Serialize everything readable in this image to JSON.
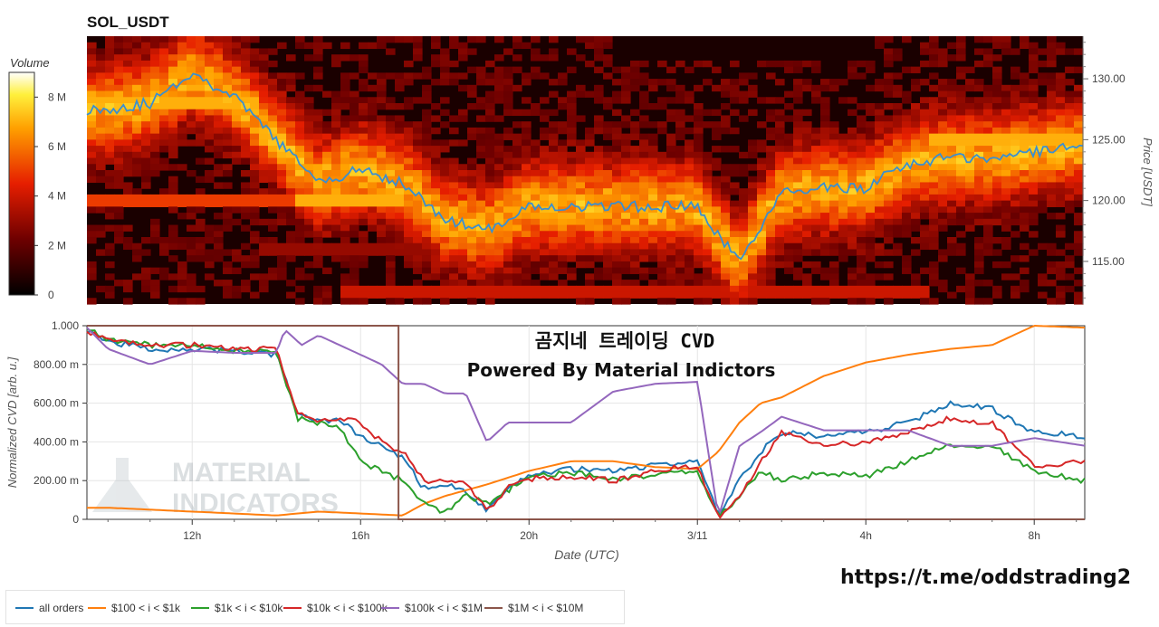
{
  "title": "SOL_USDT",
  "overlay": {
    "line1": "곰지네 트레이딩 CVD",
    "line2": "Powered By Material Indictors"
  },
  "watermark": {
    "line1": "MATERIAL",
    "line2": "INDICATORS"
  },
  "link_text": "https://t.me/oddstrading2",
  "colorbar": {
    "title": "Volume",
    "ticks": [
      "0",
      "2 M",
      "4 M",
      "6 M",
      "8 M"
    ],
    "max": 9
  },
  "heatmap_axis": {
    "label": "Price [USDT]",
    "ticks": [
      "115.00",
      "120.00",
      "125.00",
      "130.00"
    ],
    "ylim": [
      111.5,
      133.5
    ]
  },
  "cvd_axis": {
    "label": "Normalized CVD [arb. u.]",
    "ticks": [
      "0",
      "200.00 m",
      "400.00 m",
      "600.00 m",
      "800.00 m",
      "1.000"
    ],
    "ylim": [
      0,
      1
    ]
  },
  "x_axis": {
    "label": "Date (UTC)",
    "ticks": [
      "12h",
      "16h",
      "20h",
      "3/11",
      "4h",
      "8h"
    ],
    "tick_hours": [
      12,
      16,
      20,
      24,
      28,
      32
    ],
    "xlim": [
      9.5,
      33.2
    ]
  },
  "legend": [
    {
      "name": "all orders",
      "color": "#1f77b4"
    },
    {
      "name": "$100 < i < $1k",
      "color": "#ff7f0e"
    },
    {
      "name": "$1k < i < $10k",
      "color": "#2ca02c"
    },
    {
      "name": "$10k < i < $100k",
      "color": "#d62728"
    },
    {
      "name": "$100k < i < $1M",
      "color": "#9467bd"
    },
    {
      "name": "$1M < i < $10M",
      "color": "#8c564b"
    }
  ],
  "chart_data": [
    {
      "type": "heatmap",
      "title": "SOL_USDT",
      "ylabel": "Price [USDT]",
      "colorbar_label": "Volume",
      "x_hours": [
        9.5,
        10,
        11,
        12,
        13,
        14,
        15,
        16,
        17,
        18,
        19,
        20,
        21,
        22,
        23,
        24,
        25,
        26,
        27,
        28,
        29,
        30,
        31,
        32,
        33.2
      ],
      "price": [
        127.5,
        127.5,
        128.0,
        130.5,
        128.5,
        125.0,
        121.5,
        122.5,
        121.5,
        118.5,
        117.5,
        119.5,
        119.5,
        119.5,
        119.5,
        119.5,
        115.0,
        120.5,
        121.0,
        121.0,
        123.0,
        123.5,
        123.5,
        124.0,
        124.5
      ],
      "liquidity_bands": [
        {
          "price": 128.0,
          "from_hour": 9.5,
          "to_hour": 13.5,
          "volume_m": 7
        },
        {
          "price": 120.0,
          "from_hour": 9.5,
          "to_hour": 14.5,
          "volume_m": 5
        },
        {
          "price": 120.0,
          "from_hour": 14.5,
          "to_hour": 17.0,
          "volume_m": 7
        },
        {
          "price": 122.0,
          "from_hour": 14.5,
          "to_hour": 17.0,
          "volume_m": 6
        },
        {
          "price": 116.0,
          "from_hour": 13.5,
          "to_hour": 23.5,
          "volume_m": 3
        },
        {
          "price": 112.5,
          "from_hour": 15.5,
          "to_hour": 29.5,
          "volume_m": 4
        },
        {
          "price": 120.0,
          "from_hour": 19.5,
          "to_hour": 23.5,
          "volume_m": 6
        },
        {
          "price": 121.0,
          "from_hour": 26.5,
          "to_hour": 28.5,
          "volume_m": 6
        },
        {
          "price": 125.0,
          "from_hour": 29.5,
          "to_hour": 33.2,
          "volume_m": 7
        }
      ]
    },
    {
      "type": "line",
      "xlabel": "Date (UTC)",
      "ylabel": "Normalized CVD [arb. u.]",
      "ylim": [
        0,
        1
      ],
      "series": [
        {
          "name": "all orders",
          "color": "#1f77b4",
          "x": [
            9.5,
            10,
            11,
            12,
            13,
            14,
            14.5,
            15,
            15.5,
            16,
            16.5,
            17,
            17.5,
            18,
            18.5,
            19,
            19.5,
            20,
            21,
            22,
            23,
            24,
            24.5,
            25,
            25.5,
            26,
            27,
            28,
            29,
            30,
            31,
            32,
            33.2
          ],
          "y": [
            0.98,
            0.92,
            0.88,
            0.88,
            0.87,
            0.85,
            0.55,
            0.5,
            0.52,
            0.42,
            0.38,
            0.32,
            0.16,
            0.18,
            0.15,
            0.04,
            0.15,
            0.23,
            0.26,
            0.25,
            0.28,
            0.3,
            0.02,
            0.2,
            0.35,
            0.45,
            0.43,
            0.45,
            0.5,
            0.6,
            0.57,
            0.45,
            0.43
          ]
        },
        {
          "name": "$100 < i < $1k",
          "color": "#ff7f0e",
          "x": [
            9.5,
            10,
            11,
            12,
            13,
            14,
            15,
            16,
            17,
            17.5,
            18,
            19,
            20,
            21,
            22,
            23,
            24,
            24.5,
            25,
            25.5,
            26,
            27,
            28,
            29,
            30,
            31,
            32,
            33.2
          ],
          "y": [
            0.06,
            0.06,
            0.05,
            0.04,
            0.03,
            0.02,
            0.04,
            0.03,
            0.02,
            0.08,
            0.12,
            0.18,
            0.25,
            0.3,
            0.3,
            0.27,
            0.26,
            0.35,
            0.5,
            0.6,
            0.63,
            0.74,
            0.81,
            0.85,
            0.88,
            0.9,
            1.0,
            0.99
          ]
        },
        {
          "name": "$1k < i < $10k",
          "color": "#2ca02c",
          "x": [
            9.5,
            10,
            11,
            12,
            13,
            14,
            14.5,
            15,
            15.5,
            16,
            16.5,
            17,
            17.5,
            18,
            18.5,
            19,
            19.5,
            20,
            21,
            22,
            23,
            24,
            24.5,
            25,
            25.5,
            26,
            27,
            28,
            29,
            30,
            31,
            32,
            33.2
          ],
          "y": [
            0.98,
            0.93,
            0.9,
            0.9,
            0.87,
            0.86,
            0.52,
            0.5,
            0.48,
            0.3,
            0.25,
            0.2,
            0.08,
            0.03,
            0.12,
            0.08,
            0.15,
            0.22,
            0.24,
            0.21,
            0.23,
            0.25,
            0.01,
            0.12,
            0.25,
            0.2,
            0.24,
            0.22,
            0.3,
            0.38,
            0.38,
            0.25,
            0.2
          ]
        },
        {
          "name": "$10k < i < $100k",
          "color": "#d62728",
          "x": [
            9.5,
            10,
            11,
            12,
            13,
            14,
            14.5,
            15,
            15.5,
            16,
            16.5,
            17,
            17.5,
            18,
            18.5,
            19,
            19.5,
            20,
            21,
            22,
            23,
            24,
            24.5,
            25,
            25.5,
            26,
            27,
            28,
            29,
            30,
            31,
            32,
            33.2
          ],
          "y": [
            0.97,
            0.92,
            0.9,
            0.9,
            0.88,
            0.88,
            0.55,
            0.5,
            0.52,
            0.5,
            0.4,
            0.35,
            0.2,
            0.2,
            0.18,
            0.05,
            0.16,
            0.21,
            0.22,
            0.2,
            0.25,
            0.28,
            0.01,
            0.12,
            0.3,
            0.45,
            0.39,
            0.39,
            0.45,
            0.52,
            0.5,
            0.27,
            0.3
          ]
        },
        {
          "name": "$100k < i < $1M",
          "color": "#9467bd",
          "x": [
            9.5,
            10,
            11,
            12,
            13,
            14,
            14.2,
            14.6,
            15,
            16,
            16.5,
            17,
            17.5,
            18,
            18.5,
            19,
            19.5,
            20,
            21,
            22,
            23,
            24,
            24.5,
            25,
            25.5,
            26,
            27,
            28,
            29,
            30,
            31,
            32,
            33.2
          ],
          "y": [
            0.99,
            0.88,
            0.8,
            0.87,
            0.86,
            0.86,
            0.98,
            0.9,
            0.95,
            0.85,
            0.8,
            0.7,
            0.7,
            0.65,
            0.65,
            0.4,
            0.5,
            0.5,
            0.5,
            0.66,
            0.7,
            0.71,
            0.01,
            0.38,
            0.45,
            0.53,
            0.46,
            0.46,
            0.46,
            0.38,
            0.38,
            0.42,
            0.38
          ]
        },
        {
          "name": "$1M < i < $10M",
          "color": "#8c564b",
          "x": [
            9.5,
            16.9,
            16.9,
            33.2
          ],
          "y": [
            1.0,
            1.0,
            0.0,
            0.0
          ]
        }
      ]
    }
  ]
}
